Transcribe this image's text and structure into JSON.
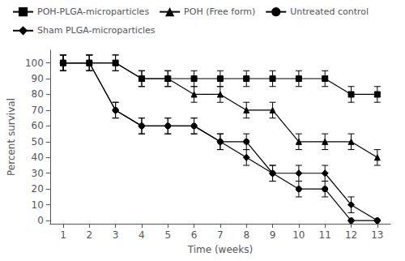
{
  "chart_data": {
    "type": "line",
    "xlabel": "Time (weeks)",
    "ylabel": "Percent survival",
    "x": [
      1,
      2,
      3,
      4,
      5,
      6,
      7,
      8,
      9,
      10,
      11,
      12,
      13
    ],
    "xlim": [
      0.5,
      13.5
    ],
    "xticks": [
      1,
      2,
      3,
      4,
      5,
      6,
      7,
      8,
      9,
      10,
      11,
      12,
      13
    ],
    "ylim": [
      -2,
      108
    ],
    "yticks": [
      0,
      10,
      20,
      30,
      40,
      50,
      60,
      70,
      80,
      90,
      100
    ],
    "grid": false,
    "legend": "upper left",
    "series": [
      {
        "name": "POH-PLGA-microparticles",
        "color": "#000000",
        "marker": "square",
        "values": [
          100,
          100,
          100,
          90,
          90,
          90,
          90,
          90,
          90,
          90,
          90,
          80,
          80
        ],
        "errors": [
          5,
          5,
          5,
          5,
          5,
          5,
          5,
          5,
          5,
          5,
          5,
          5,
          5
        ]
      },
      {
        "name": "POH (Free form)",
        "color": "#000000",
        "marker": "triangle",
        "values": [
          100,
          100,
          100,
          90,
          90,
          80,
          80,
          70,
          70,
          50,
          50,
          50,
          40
        ],
        "errors": [
          5,
          5,
          5,
          5,
          5,
          5,
          5,
          5,
          5,
          5,
          5,
          5,
          5
        ]
      },
      {
        "name": "Untreated control",
        "color": "#000000",
        "marker": "circle",
        "values": [
          100,
          100,
          70,
          60,
          60,
          60,
          50,
          50,
          30,
          20,
          20,
          0,
          0
        ],
        "errors": [
          5,
          5,
          5,
          5,
          5,
          5,
          5,
          5,
          5,
          5,
          5,
          0,
          0
        ]
      },
      {
        "name": "Sham PLGA-microparticles",
        "color": "#000000",
        "marker": "diamond",
        "values": [
          100,
          100,
          70,
          60,
          60,
          60,
          50,
          40,
          30,
          30,
          30,
          10,
          0
        ],
        "errors": [
          5,
          5,
          5,
          5,
          5,
          5,
          5,
          5,
          5,
          5,
          5,
          5,
          0
        ]
      }
    ]
  }
}
